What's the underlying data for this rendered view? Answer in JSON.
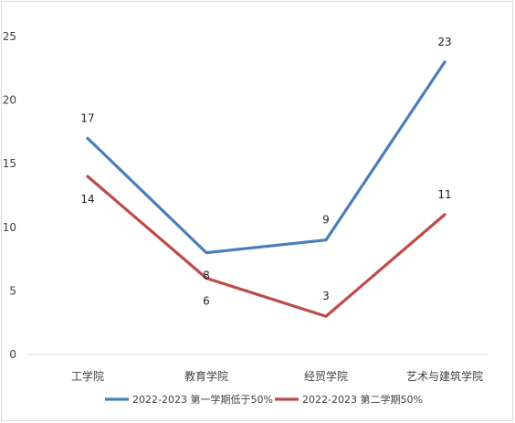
{
  "chart_data": {
    "type": "line",
    "categories": [
      "工学院",
      "教育学院",
      "经贸学院",
      "艺术与建筑学院"
    ],
    "series": [
      {
        "name": "2022-2023 第一学期低于50%",
        "values": [
          17,
          8,
          9,
          23
        ],
        "color": "#4a7ebb"
      },
      {
        "name": "2022-2023 第二学期50%",
        "values": [
          14,
          6,
          3,
          11
        ],
        "color": "#be4b48"
      }
    ],
    "ylim": [
      0,
      25
    ],
    "yticks": [
      "0",
      "5",
      "10",
      "15",
      "20",
      "25"
    ],
    "grid": false,
    "legend": "bottom",
    "data_labels": true
  }
}
